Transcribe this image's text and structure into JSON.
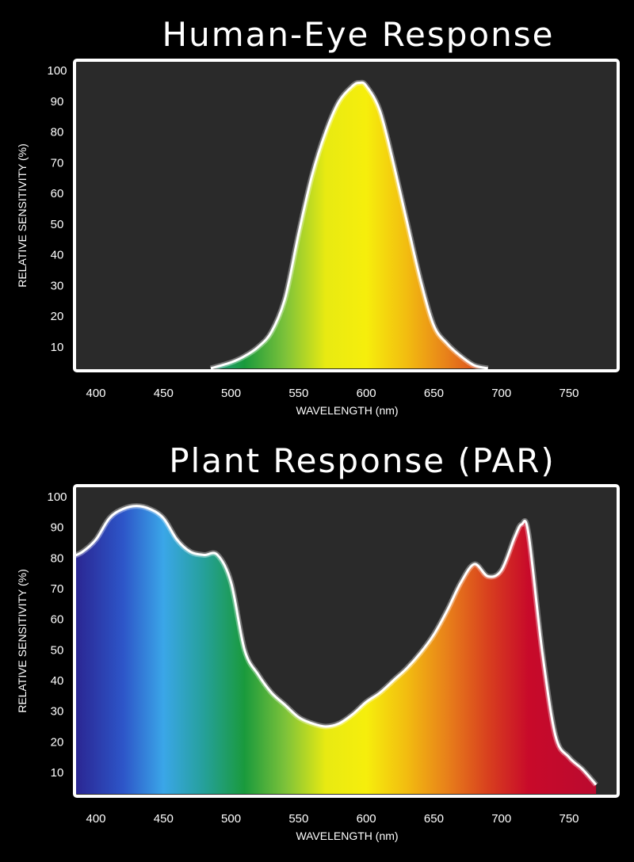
{
  "colors": {
    "background": "#000000",
    "plot_background": "#2a2a2a",
    "frame": "#ffffff",
    "text": "#ffffff",
    "spectrum_stops": [
      {
        "wavelength": 380,
        "color": "#2a1f8a"
      },
      {
        "wavelength": 420,
        "color": "#2d55c8"
      },
      {
        "wavelength": 450,
        "color": "#3aa6e8"
      },
      {
        "wavelength": 480,
        "color": "#25a09a"
      },
      {
        "wavelength": 510,
        "color": "#1a9a3c"
      },
      {
        "wavelength": 540,
        "color": "#7cc23a"
      },
      {
        "wavelength": 570,
        "color": "#e8ea12"
      },
      {
        "wavelength": 600,
        "color": "#f6ee0c"
      },
      {
        "wavelength": 630,
        "color": "#f2bc10"
      },
      {
        "wavelength": 660,
        "color": "#e8801a"
      },
      {
        "wavelength": 690,
        "color": "#d8401e"
      },
      {
        "wavelength": 720,
        "color": "#c80a2a"
      },
      {
        "wavelength": 780,
        "color": "#b80a30"
      }
    ]
  },
  "chart_data": [
    {
      "type": "area",
      "title": "Human-Eye Response",
      "xlabel": "WAVELENGTH (nm)",
      "ylabel": "RELATIVE  SENSITIVITY (%)",
      "xlim": [
        380,
        780
      ],
      "ylim": [
        2,
        100
      ],
      "xticks": [
        400,
        450,
        500,
        550,
        600,
        650,
        700,
        750
      ],
      "yticks": [
        10,
        20,
        30,
        40,
        50,
        60,
        70,
        80,
        90,
        100
      ],
      "grid": false,
      "series": [
        {
          "x": [
            485,
            500,
            510,
            520,
            530,
            540,
            550,
            560,
            570,
            580,
            590,
            595,
            600,
            610,
            620,
            630,
            640,
            650,
            660,
            670,
            680,
            690
          ],
          "y": [
            2,
            5,
            7,
            10,
            15,
            26,
            47,
            66,
            80,
            90,
            95,
            96,
            95,
            87,
            70,
            51,
            32,
            17,
            11,
            7,
            4,
            2
          ]
        }
      ]
    },
    {
      "type": "area",
      "title": "Plant Response (PAR)",
      "xlabel": "WAVELENGTH (nm)",
      "ylabel": "RELATIVE  SENSITIVITY (%)",
      "xlim": [
        380,
        780
      ],
      "ylim": [
        2,
        100
      ],
      "xticks": [
        400,
        450,
        500,
        550,
        600,
        650,
        700,
        750
      ],
      "yticks": [
        10,
        20,
        30,
        40,
        50,
        60,
        70,
        80,
        90,
        100
      ],
      "grid": false,
      "series": [
        {
          "x": [
            380,
            390,
            400,
            410,
            420,
            430,
            440,
            450,
            460,
            470,
            480,
            490,
            500,
            510,
            520,
            530,
            540,
            550,
            560,
            570,
            580,
            590,
            600,
            610,
            620,
            630,
            640,
            650,
            660,
            670,
            680,
            690,
            700,
            710,
            715,
            720,
            730,
            740,
            750,
            760,
            770
          ],
          "y": [
            80,
            82,
            86,
            93,
            96,
            97,
            96,
            93,
            86,
            82,
            81,
            81,
            72,
            50,
            42,
            36,
            32,
            28,
            26,
            25,
            26,
            29,
            33,
            36,
            40,
            44,
            49,
            55,
            63,
            72,
            78,
            74,
            76,
            87,
            91,
            88,
            50,
            22,
            15,
            11,
            6
          ]
        }
      ]
    }
  ]
}
